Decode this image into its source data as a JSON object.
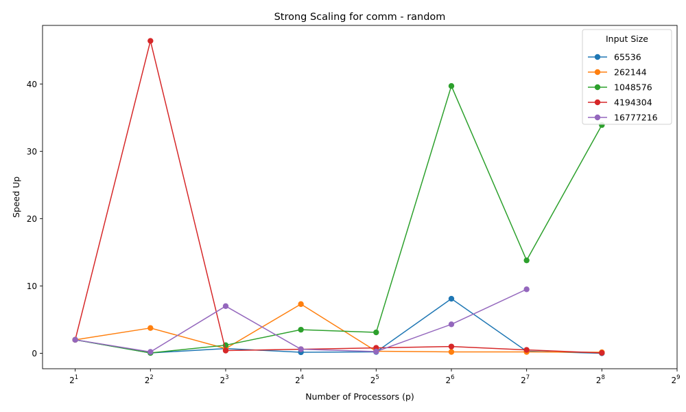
{
  "chart_data": {
    "type": "line",
    "title": "Strong Scaling for comm - random",
    "xlabel": "Number of Processors (p)",
    "ylabel": "Speed Up",
    "x_scale": "log2",
    "x_tick_labels": [
      {
        "base": "2",
        "exp": "1"
      },
      {
        "base": "2",
        "exp": "2"
      },
      {
        "base": "2",
        "exp": "3"
      },
      {
        "base": "2",
        "exp": "4"
      },
      {
        "base": "2",
        "exp": "5"
      },
      {
        "base": "2",
        "exp": "6"
      },
      {
        "base": "2",
        "exp": "7"
      },
      {
        "base": "2",
        "exp": "8"
      },
      {
        "base": "2",
        "exp": "9"
      }
    ],
    "x_ticks": [
      2,
      4,
      8,
      16,
      32,
      64,
      128,
      256,
      512
    ],
    "xlim": [
      1.48,
      512
    ],
    "y_ticks": [
      0,
      10,
      20,
      30,
      40
    ],
    "y_tick_labels": [
      "0",
      "10",
      "20",
      "30",
      "40"
    ],
    "ylim": [
      -2.3,
      48.7
    ],
    "grid": false,
    "legend_title": "Input Size",
    "legend_position": "top-right",
    "series": [
      {
        "name": "65536",
        "color": "#1f77b4",
        "x": [
          2,
          4,
          8,
          16,
          32,
          64,
          128,
          256
        ],
        "y": [
          2.0,
          0.05,
          0.7,
          0.15,
          0.2,
          8.1,
          0.3,
          0.0
        ]
      },
      {
        "name": "262144",
        "color": "#ff7f0e",
        "x": [
          2,
          4,
          8,
          16,
          32,
          64,
          128,
          256
        ],
        "y": [
          2.0,
          3.75,
          0.7,
          7.3,
          0.3,
          0.2,
          0.2,
          0.15
        ]
      },
      {
        "name": "1048576",
        "color": "#2ca02c",
        "x": [
          2,
          4,
          8,
          16,
          32,
          64,
          128,
          256
        ],
        "y": [
          2.0,
          0.05,
          1.2,
          3.5,
          3.1,
          39.7,
          13.8,
          33.9
        ]
      },
      {
        "name": "4194304",
        "color": "#d62728",
        "x": [
          2,
          4,
          8,
          16,
          32,
          64,
          128,
          256
        ],
        "y": [
          2.0,
          46.4,
          0.4,
          0.6,
          0.8,
          1.0,
          0.5,
          0.05
        ]
      },
      {
        "name": "16777216",
        "color": "#9467bd",
        "x": [
          2,
          4,
          8,
          16,
          32,
          64,
          128
        ],
        "y": [
          2.0,
          0.2,
          7.0,
          0.6,
          0.25,
          4.3,
          9.5
        ]
      }
    ]
  }
}
